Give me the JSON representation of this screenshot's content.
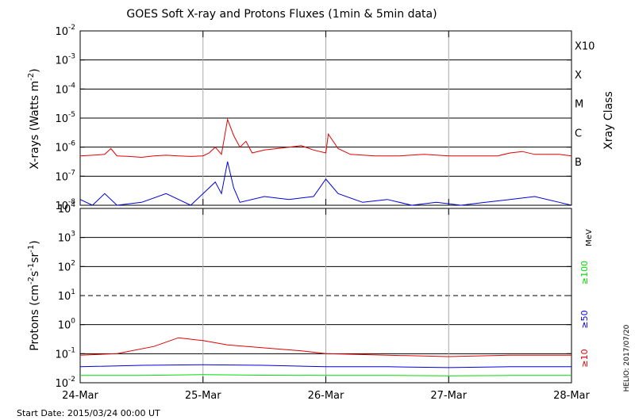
{
  "chart_data": {
    "title": "GOES Soft X-ray and Protons Fluxes   (1min & 5min data)",
    "type": "line",
    "x_ticks": [
      "24-Mar",
      "25-Mar",
      "26-Mar",
      "27-Mar",
      "28-Mar"
    ],
    "x_range": [
      "2015-03-24T00:00",
      "2015-03-28T00:00"
    ],
    "vertical_gridlines_at": [
      "25-Mar",
      "26-Mar",
      "27-Mar"
    ],
    "start_date_label": "Start Date: 2015/03/24 00:00 UT",
    "credit_label": "HELIO: 2017/07/20",
    "xray_panel": {
      "ylabel_main": "X-rays (Watts m",
      "ylabel_exp": "-2",
      "ylabel_close": ")",
      "scale": "log",
      "ylim": [
        1e-08,
        0.01
      ],
      "y_tick_exponents": [
        "-2",
        "-3",
        "-4",
        "-5",
        "-6",
        "-7",
        "-8"
      ],
      "class_axis_label": "Xray Class",
      "classes": [
        {
          "label": "X10",
          "exp": -3
        },
        {
          "label": "X",
          "exp": -4
        },
        {
          "label": "M",
          "exp": -5
        },
        {
          "label": "C",
          "exp": -6
        },
        {
          "label": "B",
          "exp": -7
        }
      ],
      "series": [
        {
          "color": "#e00000",
          "points": [
            [
              0.0,
              -6.3
            ],
            [
              0.1,
              -6.28
            ],
            [
              0.2,
              -6.25
            ],
            [
              0.25,
              -6.05
            ],
            [
              0.3,
              -6.3
            ],
            [
              0.4,
              -6.32
            ],
            [
              0.5,
              -6.35
            ],
            [
              0.6,
              -6.3
            ],
            [
              0.7,
              -6.28
            ],
            [
              0.8,
              -6.3
            ],
            [
              0.9,
              -6.32
            ],
            [
              1.0,
              -6.3
            ],
            [
              1.05,
              -6.2
            ],
            [
              1.1,
              -6.0
            ],
            [
              1.15,
              -6.25
            ],
            [
              1.2,
              -5.05
            ],
            [
              1.25,
              -5.6
            ],
            [
              1.3,
              -6.0
            ],
            [
              1.35,
              -5.8
            ],
            [
              1.4,
              -6.2
            ],
            [
              1.5,
              -6.1
            ],
            [
              1.6,
              -6.05
            ],
            [
              1.7,
              -6.0
            ],
            [
              1.8,
              -5.95
            ],
            [
              1.9,
              -6.1
            ],
            [
              2.0,
              -6.2
            ],
            [
              2.02,
              -5.55
            ],
            [
              2.1,
              -6.05
            ],
            [
              2.2,
              -6.25
            ],
            [
              2.4,
              -6.3
            ],
            [
              2.6,
              -6.3
            ],
            [
              2.8,
              -6.25
            ],
            [
              3.0,
              -6.3
            ],
            [
              3.2,
              -6.3
            ],
            [
              3.4,
              -6.3
            ],
            [
              3.5,
              -6.2
            ],
            [
              3.6,
              -6.15
            ],
            [
              3.7,
              -6.25
            ],
            [
              3.9,
              -6.25
            ],
            [
              4.0,
              -6.3
            ]
          ]
        },
        {
          "color": "#0000dd",
          "points": [
            [
              0.0,
              -7.8
            ],
            [
              0.1,
              -8.0
            ],
            [
              0.2,
              -7.6
            ],
            [
              0.3,
              -8.0
            ],
            [
              0.5,
              -7.9
            ],
            [
              0.7,
              -7.6
            ],
            [
              0.9,
              -8.0
            ],
            [
              1.1,
              -7.2
            ],
            [
              1.15,
              -7.6
            ],
            [
              1.2,
              -6.5
            ],
            [
              1.25,
              -7.4
            ],
            [
              1.3,
              -7.9
            ],
            [
              1.5,
              -7.7
            ],
            [
              1.7,
              -7.8
            ],
            [
              1.9,
              -7.7
            ],
            [
              2.0,
              -7.1
            ],
            [
              2.1,
              -7.6
            ],
            [
              2.3,
              -7.9
            ],
            [
              2.5,
              -7.8
            ],
            [
              2.7,
              -8.0
            ],
            [
              2.9,
              -7.9
            ],
            [
              3.1,
              -8.0
            ],
            [
              3.3,
              -7.9
            ],
            [
              3.5,
              -7.8
            ],
            [
              3.7,
              -7.7
            ],
            [
              3.9,
              -7.9
            ],
            [
              4.0,
              -8.0
            ]
          ]
        }
      ]
    },
    "proton_panel": {
      "ylabel_main": "Protons (cm",
      "ylabel_exp1": "-2",
      "ylabel_s": "s",
      "ylabel_exp2": "-1",
      "ylabel_sr": "sr",
      "ylabel_exp3": "-1",
      "ylabel_close": ")",
      "scale": "log",
      "ylim": [
        0.01,
        10000
      ],
      "y_tick_bases": [
        "10",
        "10",
        "10",
        "10",
        "10",
        "10",
        "10"
      ],
      "y_tick_exponents": [
        "4",
        "3",
        "2",
        "1",
        "0",
        "-1",
        "-2"
      ],
      "dashed_level_exp": 1,
      "unit_label": "MeV",
      "series": [
        {
          "name": "≥100",
          "color": "#00dd00",
          "points": [
            [
              0.0,
              -1.75
            ],
            [
              0.5,
              -1.75
            ],
            [
              1.0,
              -1.72
            ],
            [
              1.5,
              -1.74
            ],
            [
              2.0,
              -1.75
            ],
            [
              2.5,
              -1.75
            ],
            [
              3.0,
              -1.76
            ],
            [
              3.5,
              -1.75
            ],
            [
              4.0,
              -1.75
            ]
          ]
        },
        {
          "name": "≥50",
          "color": "#0000dd",
          "points": [
            [
              0.0,
              -1.45
            ],
            [
              0.5,
              -1.4
            ],
            [
              1.0,
              -1.38
            ],
            [
              1.5,
              -1.4
            ],
            [
              2.0,
              -1.45
            ],
            [
              2.5,
              -1.45
            ],
            [
              3.0,
              -1.48
            ],
            [
              3.5,
              -1.45
            ],
            [
              4.0,
              -1.45
            ]
          ]
        },
        {
          "name": "≥10",
          "color": "#e00000",
          "points": [
            [
              0.0,
              -1.05
            ],
            [
              0.3,
              -1.0
            ],
            [
              0.6,
              -0.75
            ],
            [
              0.8,
              -0.45
            ],
            [
              1.0,
              -0.55
            ],
            [
              1.2,
              -0.7
            ],
            [
              1.5,
              -0.8
            ],
            [
              1.8,
              -0.9
            ],
            [
              2.0,
              -1.0
            ],
            [
              2.5,
              -1.05
            ],
            [
              3.0,
              -1.1
            ],
            [
              3.5,
              -1.05
            ],
            [
              4.0,
              -1.05
            ]
          ]
        }
      ]
    }
  }
}
